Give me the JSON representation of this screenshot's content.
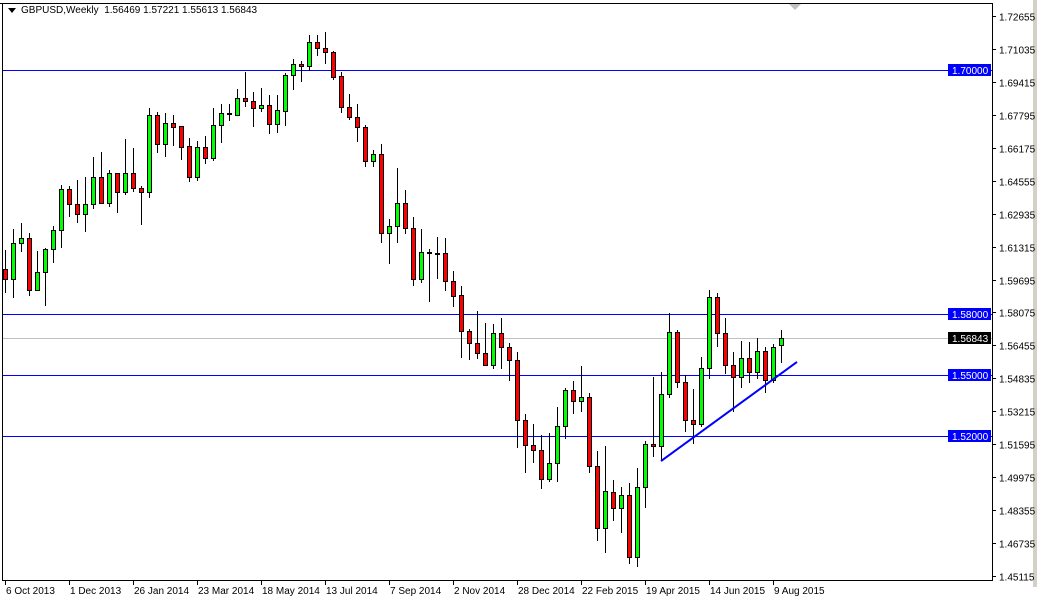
{
  "header": {
    "symbol_timeframe": "GBPUSD,Weekly",
    "ohlc_readout": "1.56469 1.57221 1.55613 1.56843"
  },
  "colors": {
    "bull": "#00ff00",
    "bear": "#ff0000",
    "outline": "#000000",
    "level_line": "#0000ff",
    "trendline": "#0000ff",
    "bid_line": "#c0c0c0",
    "bid_label_bg": "#000000"
  },
  "chart_data": {
    "type": "candlestick",
    "title": "GBPUSD,Weekly",
    "timeframe": "Weekly",
    "ylim": [
      1.45115,
      1.72655
    ],
    "y_tick_labels": [
      "1.72655",
      "1.71035",
      "1.69415",
      "1.67795",
      "1.66175",
      "1.64555",
      "1.62935",
      "1.61315",
      "1.59695",
      "1.58075",
      "1.56455",
      "1.54835",
      "1.53215",
      "1.51595",
      "1.49975",
      "1.48355",
      "1.46735",
      "1.45115"
    ],
    "x_tick_labels": [
      "6 Oct 2013",
      "1 Dec 2013",
      "26 Jan 2014",
      "23 Mar 2014",
      "18 May 2014",
      "13 Jul 2014",
      "7 Sep 2014",
      "2 Nov 2014",
      "28 Dec 2014",
      "22 Feb 2015",
      "19 Apr 2015",
      "14 Jun 2015",
      "9 Aug 2015"
    ],
    "grid": false,
    "ohlc_fields": [
      "open",
      "high",
      "low",
      "close"
    ],
    "candles": [
      [
        1.6021,
        1.6114,
        1.5902,
        1.5971
      ],
      [
        1.5971,
        1.6217,
        1.5878,
        1.6148
      ],
      [
        1.6148,
        1.6247,
        1.6104,
        1.6173
      ],
      [
        1.6173,
        1.6198,
        1.5888,
        1.5917
      ],
      [
        1.5917,
        1.6109,
        1.5912,
        1.6006
      ],
      [
        1.6006,
        1.6124,
        1.5838,
        1.6119
      ],
      [
        1.6119,
        1.6232,
        1.605,
        1.6212
      ],
      [
        1.6212,
        1.6434,
        1.6124,
        1.6414
      ],
      [
        1.6414,
        1.6429,
        1.6276,
        1.634
      ],
      [
        1.634,
        1.6458,
        1.6247,
        1.6291
      ],
      [
        1.6291,
        1.6473,
        1.6203,
        1.634
      ],
      [
        1.634,
        1.6572,
        1.6316,
        1.6473
      ],
      [
        1.6473,
        1.6596,
        1.634,
        1.6345
      ],
      [
        1.6345,
        1.6508,
        1.6326,
        1.6493
      ],
      [
        1.6493,
        1.6493,
        1.6296,
        1.6399
      ],
      [
        1.6399,
        1.666,
        1.6385,
        1.6493
      ],
      [
        1.6493,
        1.6616,
        1.6399,
        1.6419
      ],
      [
        1.6419,
        1.6429,
        1.6237,
        1.6399
      ],
      [
        1.6399,
        1.6813,
        1.637,
        1.6778
      ],
      [
        1.6778,
        1.6793,
        1.6591,
        1.6636
      ],
      [
        1.6636,
        1.6788,
        1.6572,
        1.6739
      ],
      [
        1.6739,
        1.6778,
        1.6626,
        1.6719
      ],
      [
        1.6724,
        1.6724,
        1.6557,
        1.6621
      ],
      [
        1.6626,
        1.6665,
        1.6449,
        1.6473
      ],
      [
        1.6473,
        1.665,
        1.6453,
        1.6621
      ],
      [
        1.6621,
        1.6675,
        1.6537,
        1.6567
      ],
      [
        1.6567,
        1.6813,
        1.6552,
        1.6729
      ],
      [
        1.6729,
        1.6832,
        1.664,
        1.6788
      ],
      [
        1.6783,
        1.6832,
        1.6749,
        1.6788
      ],
      [
        1.6778,
        1.6906,
        1.6773,
        1.6862
      ],
      [
        1.6862,
        1.699,
        1.6818,
        1.6847
      ],
      [
        1.6847,
        1.6891,
        1.6719,
        1.6813
      ],
      [
        1.6813,
        1.6911,
        1.6793,
        1.6827
      ],
      [
        1.6827,
        1.6877,
        1.6685,
        1.6734
      ],
      [
        1.6734,
        1.6877,
        1.669,
        1.6803
      ],
      [
        1.6798,
        1.6985,
        1.6724,
        1.6975
      ],
      [
        1.6975,
        1.7054,
        1.6901,
        1.7029
      ],
      [
        1.7029,
        1.7044,
        1.6941,
        1.7019
      ],
      [
        1.7019,
        1.7172,
        1.6995,
        1.7137
      ],
      [
        1.7137,
        1.7172,
        1.7068,
        1.7108
      ],
      [
        1.7108,
        1.7187,
        1.7029,
        1.7088
      ],
      [
        1.7088,
        1.7093,
        1.695,
        1.6965
      ],
      [
        1.697,
        1.699,
        1.6788,
        1.6818
      ],
      [
        1.6818,
        1.6882,
        1.6754,
        1.6768
      ],
      [
        1.6768,
        1.6832,
        1.6645,
        1.6719
      ],
      [
        1.6719,
        1.6729,
        1.6522,
        1.6552
      ],
      [
        1.6552,
        1.6606,
        1.6522,
        1.6586
      ],
      [
        1.6586,
        1.6636,
        1.6148,
        1.6198
      ],
      [
        1.6198,
        1.6267,
        1.6045,
        1.6232
      ],
      [
        1.6232,
        1.6517,
        1.6148,
        1.6345
      ],
      [
        1.6345,
        1.6409,
        1.6193,
        1.6222
      ],
      [
        1.6222,
        1.6276,
        1.5937,
        1.5971
      ],
      [
        1.5971,
        1.6217,
        1.5952,
        1.6104
      ],
      [
        1.6104,
        1.6119,
        1.5858,
        1.6099
      ],
      [
        1.6099,
        1.6178,
        1.5971,
        1.6097
      ],
      [
        1.6099,
        1.6173,
        1.5912,
        1.5961
      ],
      [
        1.5961,
        1.6011,
        1.5834,
        1.5888
      ],
      [
        1.5893,
        1.5937,
        1.5583,
        1.5715
      ],
      [
        1.5715,
        1.5725,
        1.5573,
        1.5656
      ],
      [
        1.5656,
        1.5814,
        1.5578,
        1.5607
      ],
      [
        1.5607,
        1.5755,
        1.5543,
        1.5548
      ],
      [
        1.5548,
        1.575,
        1.5529,
        1.5706
      ],
      [
        1.5706,
        1.5779,
        1.5529,
        1.5637
      ],
      [
        1.5637,
        1.5656,
        1.5469,
        1.5573
      ],
      [
        1.5573,
        1.5612,
        1.514,
        1.5278
      ],
      [
        1.5278,
        1.5307,
        1.5017,
        1.5155
      ],
      [
        1.5155,
        1.5258,
        1.5066,
        1.513
      ],
      [
        1.513,
        1.5204,
        1.4938,
        1.4987
      ],
      [
        1.4987,
        1.5214,
        1.4973,
        1.5066
      ],
      [
        1.5066,
        1.5342,
        1.4973,
        1.5248
      ],
      [
        1.5248,
        1.5435,
        1.5184,
        1.5425
      ],
      [
        1.5425,
        1.5469,
        1.5307,
        1.5371
      ],
      [
        1.5371,
        1.5543,
        1.5317,
        1.5391
      ],
      [
        1.5391,
        1.541,
        1.5017,
        1.5051
      ],
      [
        1.5051,
        1.5125,
        1.4682,
        1.4746
      ],
      [
        1.4746,
        1.515,
        1.4623,
        1.4928
      ],
      [
        1.4923,
        1.4982,
        1.4781,
        1.4845
      ],
      [
        1.4845,
        1.4948,
        1.4722,
        1.4909
      ],
      [
        1.4909,
        1.4968,
        1.4569,
        1.4604
      ],
      [
        1.4604,
        1.5041,
        1.4554,
        1.4948
      ],
      [
        1.4948,
        1.5174,
        1.4845,
        1.516
      ],
      [
        1.516,
        1.5489,
        1.5096,
        1.515
      ],
      [
        1.515,
        1.5514,
        1.5081,
        1.5406
      ],
      [
        1.5406,
        1.5804,
        1.5386,
        1.5711
      ],
      [
        1.5711,
        1.572,
        1.5435,
        1.5465
      ],
      [
        1.5465,
        1.5499,
        1.5219,
        1.5278
      ],
      [
        1.5278,
        1.543,
        1.516,
        1.5258
      ],
      [
        1.5258,
        1.5588,
        1.5243,
        1.5533
      ],
      [
        1.5533,
        1.5917,
        1.5479,
        1.5883
      ],
      [
        1.5883,
        1.5902,
        1.5637,
        1.5706
      ],
      [
        1.5706,
        1.5779,
        1.5504,
        1.5548
      ],
      [
        1.5548,
        1.5612,
        1.5317,
        1.5489
      ],
      [
        1.5489,
        1.5666,
        1.5435,
        1.5583
      ],
      [
        1.5583,
        1.5661,
        1.546,
        1.5514
      ],
      [
        1.5514,
        1.5681,
        1.5479,
        1.5617
      ],
      [
        1.5617,
        1.5637,
        1.541,
        1.5474
      ],
      [
        1.5474,
        1.5652,
        1.546,
        1.5637
      ],
      [
        1.56469,
        1.57221,
        1.55613,
        1.56843
      ]
    ],
    "horizontal_levels": [
      {
        "price": 1.7,
        "label": "1.70000"
      },
      {
        "price": 1.58,
        "label": "1.58000"
      },
      {
        "price": 1.55,
        "label": "1.55000"
      },
      {
        "price": 1.52,
        "label": "1.52000"
      }
    ],
    "bid": {
      "price": 1.56843,
      "label": "1.56843"
    },
    "trendline": {
      "from": {
        "date": "2015-05-03",
        "price": 1.5077
      },
      "to": {
        "date": "2015-08-30",
        "price": 1.5564
      }
    }
  }
}
